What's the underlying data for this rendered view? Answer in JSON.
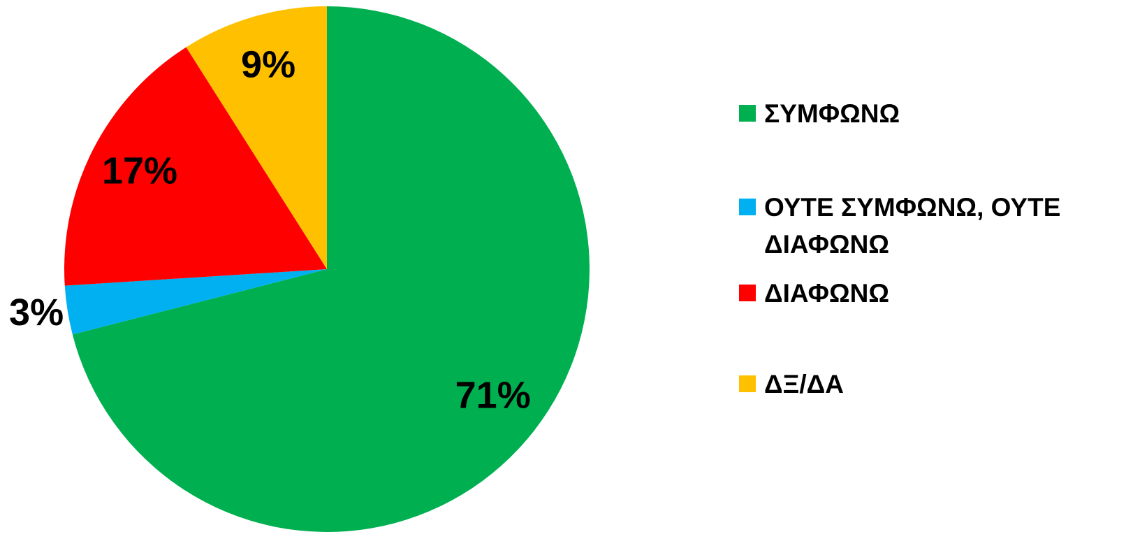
{
  "chart_data": {
    "type": "pie",
    "categories": [
      "ΣΥΜΦΩΝΩ",
      "ΟΥΤΕ ΣΥΜΦΩΝΩ, ΟΥΤΕ ΔΙΑΦΩΝΩ",
      "ΔΙΑΦΩΝΩ",
      "ΔΞ/ΔΑ"
    ],
    "values": [
      71,
      3,
      17,
      9
    ],
    "value_labels": [
      "71%",
      "3%",
      "17%",
      "9%"
    ],
    "colors": [
      "#00B050",
      "#00B0F0",
      "#FF0000",
      "#FFC000"
    ],
    "legend": "right"
  }
}
